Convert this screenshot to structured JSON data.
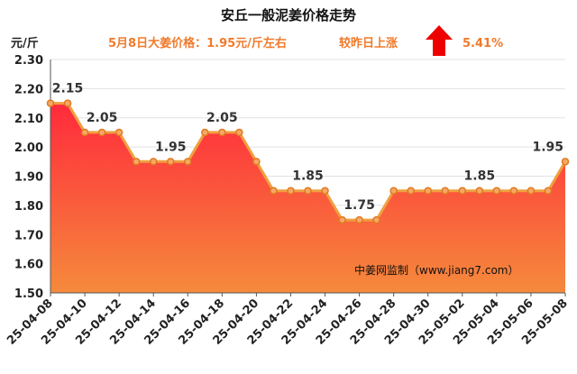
{
  "chart_data": {
    "type": "area",
    "title": "安丘一般泥姜价格走势",
    "subtitle": "5月8日大姜价格：1.95元/斤左右",
    "change_text": "较昨日上涨",
    "change_pct": "5.41%",
    "change_direction": "up",
    "ylabel": "元/斤",
    "watermark": "中姜网监制（www.jiang7.com）",
    "ylim": [
      1.5,
      2.3
    ],
    "yticks": [
      "2.30",
      "2.20",
      "2.10",
      "2.00",
      "1.90",
      "1.80",
      "1.70",
      "1.60",
      "1.50"
    ],
    "x": [
      "25-04-08",
      "25-04-09",
      "25-04-10",
      "25-04-11",
      "25-04-12",
      "25-04-13",
      "25-04-14",
      "25-04-15",
      "25-04-16",
      "25-04-17",
      "25-04-18",
      "25-04-19",
      "25-04-20",
      "25-04-21",
      "25-04-22",
      "25-04-23",
      "25-04-24",
      "25-04-25",
      "25-04-26",
      "25-04-27",
      "25-04-28",
      "25-04-29",
      "25-04-30",
      "25-05-01",
      "25-05-02",
      "25-05-03",
      "25-05-04",
      "25-05-05",
      "25-05-06",
      "25-05-07",
      "25-05-08"
    ],
    "xtick_labels": [
      "25-04-08",
      "25-04-10",
      "25-04-12",
      "25-04-14",
      "25-04-16",
      "25-04-18",
      "25-04-20",
      "25-04-22",
      "25-04-24",
      "25-04-26",
      "25-04-28",
      "25-04-30",
      "25-05-02",
      "25-05-04",
      "25-05-06",
      "25-05-08"
    ],
    "values": [
      2.15,
      2.15,
      2.05,
      2.05,
      2.05,
      1.95,
      1.95,
      1.95,
      1.95,
      2.05,
      2.05,
      2.05,
      1.95,
      1.85,
      1.85,
      1.85,
      1.85,
      1.75,
      1.75,
      1.75,
      1.85,
      1.85,
      1.85,
      1.85,
      1.85,
      1.85,
      1.85,
      1.85,
      1.85,
      1.85,
      1.95
    ],
    "data_labels": [
      {
        "index": 1,
        "text": "2.15"
      },
      {
        "index": 3,
        "text": "2.05"
      },
      {
        "index": 7,
        "text": "1.95"
      },
      {
        "index": 10,
        "text": "2.05"
      },
      {
        "index": 15,
        "text": "1.85"
      },
      {
        "index": 18,
        "text": "1.75"
      },
      {
        "index": 25,
        "text": "1.85"
      },
      {
        "index": 30,
        "text": "1.95"
      }
    ],
    "colors": {
      "fill_top": "#ff2a3c",
      "fill_bottom": "#f58a3c",
      "line": "#f0a040",
      "marker_fill": "#f6a866",
      "marker_stroke": "#e07a20",
      "subtitle": "#f07a2a",
      "arrow": "#ee0000"
    }
  }
}
